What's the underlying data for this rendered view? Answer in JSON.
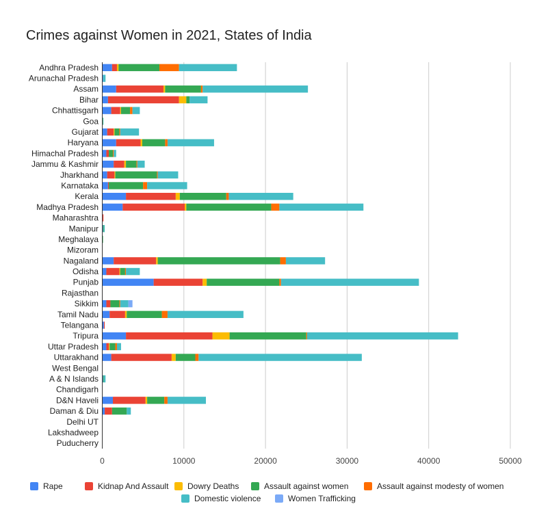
{
  "chart_data": {
    "type": "bar",
    "orientation": "horizontal",
    "stacked": true,
    "title": "Crimes against Women in 2021, States of India",
    "xlabel": "",
    "ylabel": "",
    "xlim": [
      0,
      50000
    ],
    "xticks": [
      0,
      10000,
      20000,
      30000,
      40000,
      50000
    ],
    "xtick_labels": [
      "0",
      "10000",
      "20000",
      "30000",
      "40000",
      "50000"
    ],
    "grid": true,
    "legend_position": "bottom",
    "categories": [
      "Andhra Pradesh",
      "Arunachal Pradesh",
      "Assam",
      "Bihar",
      "Chhattisgarh",
      "Goa",
      "Gujarat",
      "Haryana",
      "Himachal Pradesh",
      "Jammu & Kashmir",
      "Jharkhand",
      "Karnataka",
      "Kerala",
      "Madhya Pradesh",
      "Maharashtra",
      "Manipur",
      "Meghalaya",
      "Mizoram",
      "Nagaland",
      "Odisha",
      "Punjab",
      "Rajasthan",
      "Sikkim",
      "Tamil Nadu",
      "Telangana",
      "Tripura",
      "Uttar Pradesh",
      "Uttarakhand",
      "West Bengal",
      "A & N Islands",
      "Chandigarh",
      "D&N Haveli",
      "Daman & Diu",
      "Delhi UT",
      "Lakshadweep",
      "Puducherry"
    ],
    "series": [
      {
        "name": "Rape",
        "color": "#4285F4",
        "values": [
          1200,
          100,
          1700,
          700,
          1100,
          50,
          600,
          1700,
          500,
          1400,
          600,
          700,
          2900,
          2500,
          50,
          100,
          50,
          0,
          1400,
          500,
          6300,
          0,
          500,
          900,
          200,
          2900,
          500,
          1100,
          0,
          100,
          0,
          1300,
          300,
          0,
          0,
          0
        ]
      },
      {
        "name": "Kidnap And Assault",
        "color": "#EA4335",
        "values": [
          600,
          0,
          5800,
          8700,
          1100,
          0,
          800,
          3000,
          300,
          1300,
          900,
          100,
          6100,
          7600,
          100,
          0,
          0,
          0,
          5200,
          1600,
          6000,
          0,
          500,
          1900,
          100,
          10600,
          300,
          7400,
          0,
          0,
          0,
          4000,
          900,
          0,
          0,
          0
        ]
      },
      {
        "name": "Dowry Deaths",
        "color": "#FBBC04",
        "values": [
          200,
          0,
          200,
          900,
          100,
          0,
          100,
          200,
          0,
          200,
          100,
          0,
          500,
          200,
          0,
          0,
          0,
          0,
          200,
          100,
          500,
          0,
          0,
          200,
          0,
          2100,
          100,
          500,
          0,
          0,
          0,
          200,
          0,
          0,
          0,
          0
        ]
      },
      {
        "name": "Assault against women",
        "color": "#34A853",
        "values": [
          5000,
          0,
          4400,
          400,
          1100,
          50,
          600,
          2800,
          500,
          1300,
          5100,
          4200,
          5700,
          10400,
          0,
          100,
          50,
          0,
          15000,
          600,
          8900,
          0,
          1100,
          4300,
          0,
          9400,
          700,
          2400,
          0,
          100,
          0,
          2100,
          1800,
          0,
          0,
          0
        ]
      },
      {
        "name": "Assault against modesty of women",
        "color": "#FF6D01",
        "values": [
          2400,
          0,
          200,
          0,
          300,
          0,
          100,
          300,
          100,
          100,
          100,
          500,
          300,
          1000,
          0,
          0,
          0,
          0,
          700,
          100,
          200,
          0,
          100,
          700,
          0,
          100,
          200,
          400,
          0,
          0,
          0,
          400,
          0,
          0,
          0,
          0
        ]
      },
      {
        "name": "Domestic violence",
        "color": "#46BDC6",
        "values": [
          7100,
          300,
          12900,
          2200,
          900,
          50,
          2300,
          5700,
          300,
          900,
          2500,
          4900,
          7900,
          10300,
          0,
          100,
          0,
          0,
          4800,
          1700,
          16900,
          0,
          1000,
          9300,
          0,
          18500,
          500,
          20000,
          0,
          200,
          0,
          4700,
          500,
          0,
          0,
          0
        ]
      },
      {
        "name": "Women Trafficking",
        "color": "#7BAAF7",
        "values": [
          0,
          0,
          0,
          0,
          0,
          0,
          0,
          0,
          0,
          0,
          0,
          0,
          0,
          0,
          0,
          0,
          0,
          0,
          0,
          0,
          0,
          0,
          500,
          0,
          0,
          0,
          0,
          0,
          0,
          0,
          0,
          0,
          0,
          0,
          0,
          0
        ]
      }
    ]
  }
}
